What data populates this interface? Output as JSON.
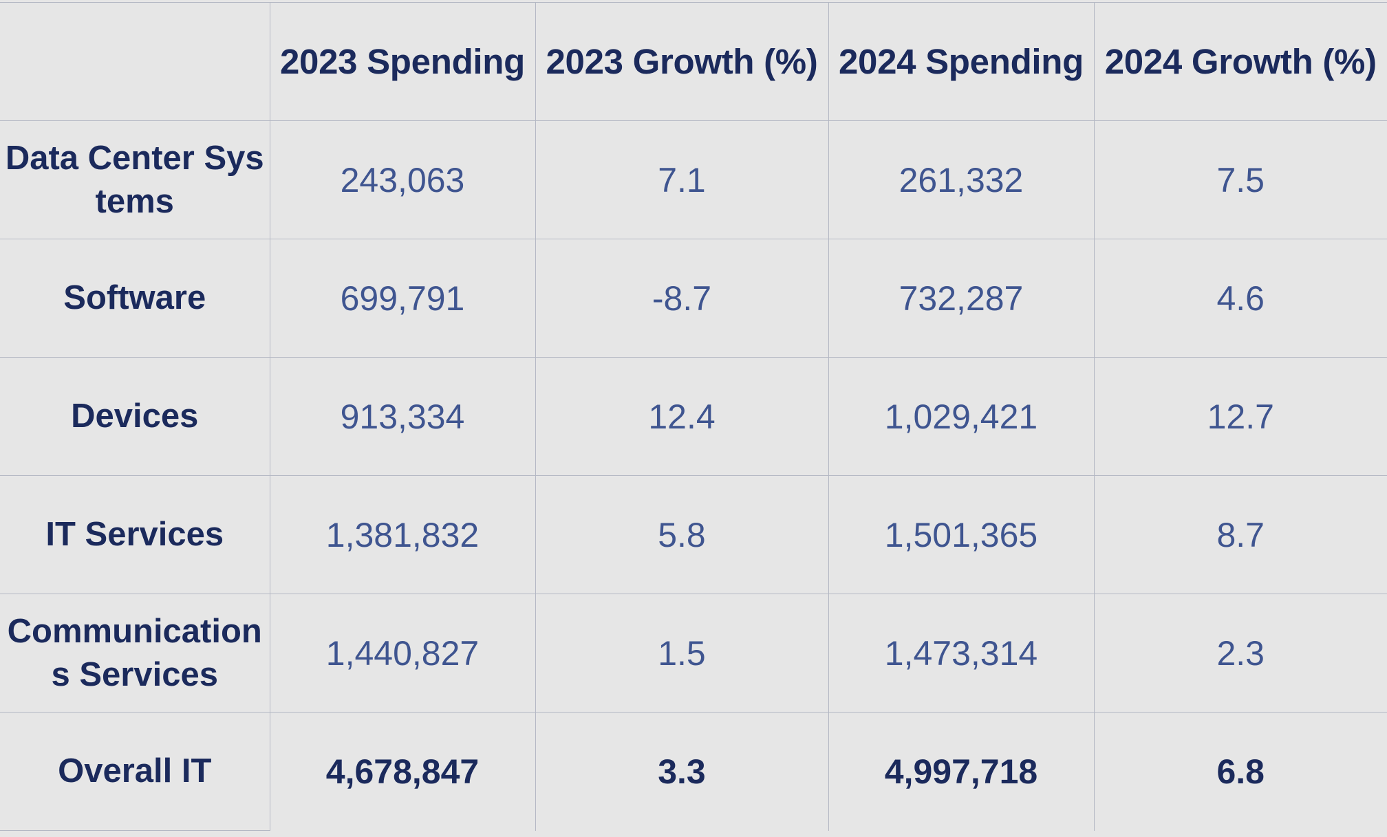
{
  "table": {
    "columns": [
      "",
      "2023 Spending",
      "2023 Growth (%)",
      "2024 Spending",
      "2024 Growth (%)"
    ],
    "rows": [
      {
        "label": "Data Center Systems",
        "values": [
          "243,063",
          "7.1",
          "261,332",
          "7.5"
        ]
      },
      {
        "label": "Software",
        "values": [
          "699,791",
          "-8.7",
          "732,287",
          "4.6"
        ]
      },
      {
        "label": "Devices",
        "values": [
          "913,334",
          "12.4",
          "1,029,421",
          "12.7"
        ]
      },
      {
        "label": "IT Services",
        "values": [
          "1,381,832",
          "5.8",
          "1,501,365",
          "8.7"
        ]
      },
      {
        "label": "Communications Services",
        "values": [
          "1,440,827",
          "1.5",
          "1,473,314",
          "2.3"
        ]
      },
      {
        "label": "Overall IT",
        "values": [
          "4,678,847",
          "3.3",
          "4,997,718",
          "6.8"
        ]
      }
    ]
  },
  "colors": {
    "background": "#e6e6e6",
    "header_text": "#1b2a5c",
    "value_text": "#3f5590",
    "grid": "#b4b8c4"
  }
}
